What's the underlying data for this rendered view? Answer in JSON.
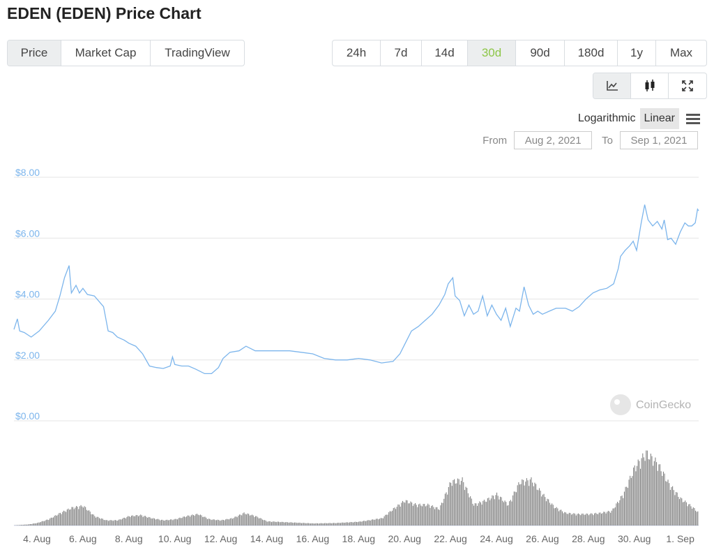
{
  "page": {
    "title": "EDEN (EDEN) Price Chart"
  },
  "chart_tabs": [
    "Price",
    "Market Cap",
    "TradingView"
  ],
  "chart_tab_active": 0,
  "range_tabs": [
    "24h",
    "7d",
    "14d",
    "30d",
    "90d",
    "180d",
    "1y",
    "Max"
  ],
  "range_tab_active": 3,
  "colors": {
    "price_line": "#7cb5ec",
    "volume_bar": "#7f7f7f",
    "active_range": "#8dc647",
    "y_label": "#7cb5ec"
  },
  "view_tabs": [
    {
      "name": "line-chart-icon",
      "active": true
    },
    {
      "name": "candlestick-icon",
      "active": false
    },
    {
      "name": "fullscreen-icon",
      "active": false
    }
  ],
  "scale": {
    "logarithmic": "Logarithmic",
    "linear": "Linear",
    "active": "linear"
  },
  "date_range": {
    "from_label": "From",
    "from_value": "Aug 2, 2021",
    "to_label": "To",
    "to_value": "Sep 1, 2021"
  },
  "watermark": "CoinGecko",
  "chart_data": {
    "type": "line",
    "ylim": [
      0,
      8
    ],
    "y_ticks": [
      "$8.00",
      "$6.00",
      "$4.00",
      "$2.00",
      "$0.00"
    ],
    "y_tick_values": [
      8,
      6,
      4,
      2,
      0
    ],
    "x_ticks": [
      "4. Aug",
      "6. Aug",
      "8. Aug",
      "10. Aug",
      "12. Aug",
      "14. Aug",
      "16. Aug",
      "18. Aug",
      "20. Aug",
      "22. Aug",
      "24. Aug",
      "26. Aug",
      "28. Aug",
      "30. Aug",
      "1. Sep"
    ],
    "x_tick_days": [
      4,
      6,
      8,
      10,
      12,
      14,
      16,
      18,
      20,
      22,
      24,
      26,
      28,
      30,
      32
    ],
    "xlim_days": [
      3.0,
      32.8
    ],
    "series": [
      {
        "x": [
          3.0,
          3.15,
          3.25,
          3.45,
          3.75,
          4.1,
          4.5,
          4.8,
          5.0,
          5.2,
          5.4,
          5.5,
          5.7,
          5.85,
          6.0,
          6.2,
          6.5,
          6.9,
          7.1,
          7.3,
          7.5,
          7.8,
          8.0,
          8.3,
          8.6,
          8.9,
          9.2,
          9.5,
          9.8,
          9.9,
          10.0,
          10.3,
          10.6,
          10.9,
          11.3,
          11.6,
          11.9,
          12.1,
          12.4,
          12.8,
          13.1,
          13.5,
          14.0,
          14.5,
          15.0,
          15.5,
          16.0,
          16.5,
          17.0,
          17.5,
          18.0,
          18.5,
          19.0,
          19.5,
          19.8,
          20.0,
          20.3,
          20.6,
          20.9,
          21.2,
          21.5,
          21.75,
          21.9,
          22.1,
          22.2,
          22.4,
          22.6,
          22.8,
          23.0,
          23.2,
          23.4,
          23.6,
          23.8,
          24.0,
          24.2,
          24.4,
          24.6,
          24.85,
          25.0,
          25.2,
          25.4,
          25.6,
          25.8,
          26.0,
          26.3,
          26.6,
          27.0,
          27.3,
          27.6,
          27.9,
          28.2,
          28.5,
          28.8,
          29.1,
          29.3,
          29.4,
          29.6,
          29.8,
          29.95,
          30.1,
          30.3,
          30.45,
          30.6,
          30.8,
          31.0,
          31.2,
          31.3,
          31.45,
          31.6,
          31.8,
          32.0,
          32.2,
          32.35,
          32.5,
          32.65,
          32.75,
          32.8
        ],
        "y": [
          3.0,
          3.35,
          2.95,
          2.9,
          2.75,
          2.95,
          3.3,
          3.6,
          4.1,
          4.7,
          5.1,
          4.2,
          4.45,
          4.2,
          4.35,
          4.15,
          4.1,
          3.75,
          2.95,
          2.9,
          2.75,
          2.65,
          2.55,
          2.45,
          2.2,
          1.8,
          1.75,
          1.72,
          1.8,
          2.1,
          1.85,
          1.8,
          1.8,
          1.7,
          1.55,
          1.55,
          1.75,
          2.05,
          2.25,
          2.3,
          2.45,
          2.3,
          2.3,
          2.3,
          2.3,
          2.25,
          2.2,
          2.05,
          2.0,
          2.0,
          2.05,
          2.0,
          1.9,
          1.95,
          2.2,
          2.5,
          2.95,
          3.1,
          3.3,
          3.5,
          3.8,
          4.15,
          4.5,
          4.7,
          4.1,
          3.95,
          3.45,
          3.8,
          3.5,
          3.6,
          4.1,
          3.45,
          3.8,
          3.5,
          3.3,
          3.7,
          3.1,
          3.7,
          3.6,
          4.4,
          3.8,
          3.5,
          3.6,
          3.5,
          3.6,
          3.7,
          3.7,
          3.6,
          3.75,
          4.0,
          4.2,
          4.3,
          4.35,
          4.5,
          5.0,
          5.4,
          5.6,
          5.75,
          5.9,
          5.6,
          6.5,
          7.1,
          6.6,
          6.4,
          6.55,
          6.3,
          6.6,
          5.95,
          6.0,
          5.8,
          6.2,
          6.5,
          6.4,
          6.4,
          6.5,
          6.95,
          6.9
        ]
      }
    ],
    "volume": {
      "x": [
        3.0,
        3.6,
        4.0,
        4.5,
        5.0,
        5.5,
        6.0,
        6.5,
        7.0,
        7.5,
        8.0,
        8.5,
        9.0,
        9.5,
        10.0,
        10.5,
        11.0,
        11.5,
        12.0,
        12.5,
        13.0,
        13.5,
        14.0,
        15.0,
        16.0,
        17.0,
        18.0,
        19.0,
        19.5,
        20.0,
        20.5,
        21.0,
        21.5,
        22.0,
        22.5,
        23.0,
        23.5,
        24.0,
        24.5,
        25.0,
        25.5,
        26.0,
        26.5,
        27.0,
        27.5,
        28.0,
        28.5,
        29.0,
        29.5,
        30.0,
        30.5,
        31.0,
        31.5,
        32.0,
        32.5,
        32.8
      ],
      "y": [
        0.01,
        0.05,
        0.12,
        0.3,
        0.6,
        0.85,
        0.95,
        0.45,
        0.25,
        0.25,
        0.45,
        0.5,
        0.35,
        0.25,
        0.3,
        0.45,
        0.55,
        0.3,
        0.25,
        0.35,
        0.6,
        0.45,
        0.2,
        0.15,
        0.1,
        0.12,
        0.18,
        0.35,
        0.8,
        1.2,
        1.0,
        1.0,
        0.8,
        2.1,
        2.2,
        1.0,
        1.2,
        1.5,
        1.0,
        2.1,
        2.2,
        1.5,
        0.9,
        0.6,
        0.55,
        0.55,
        0.6,
        0.7,
        1.5,
        2.8,
        3.5,
        3.0,
        2.0,
        1.3,
        0.9,
        0.6
      ]
    }
  }
}
